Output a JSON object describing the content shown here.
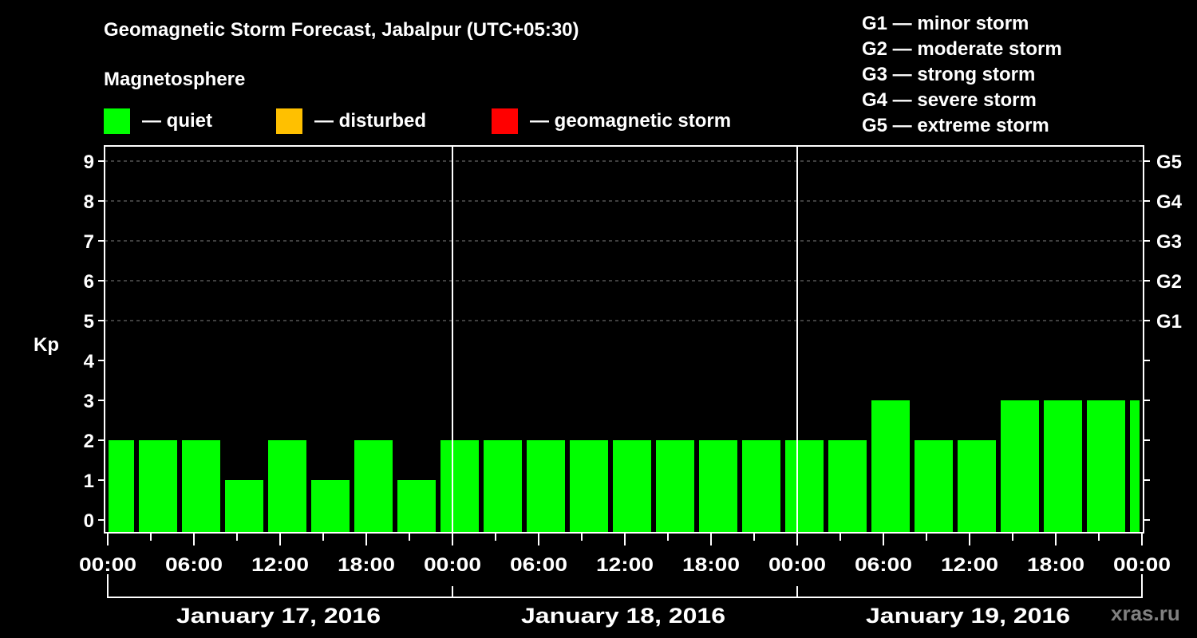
{
  "header": {
    "title": "Geomagnetic Storm Forecast, Jabalpur (UTC+05:30)",
    "subtitle": "Magnetosphere"
  },
  "legend": [
    {
      "label": "— quiet",
      "color": "#00ff00"
    },
    {
      "label": "— disturbed",
      "color": "#ffc000"
    },
    {
      "label": "— geomagnetic storm",
      "color": "#ff0000"
    }
  ],
  "g_scale_legend": [
    "G1 — minor storm",
    "G2 — moderate storm",
    "G3 — strong storm",
    "G4 — severe storm",
    "G5 — extreme storm"
  ],
  "watermark": "xras.ru",
  "chart_data": {
    "type": "bar",
    "title": "Geomagnetic Storm Forecast, Jabalpur (UTC+05:30)",
    "xlabel": "",
    "ylabel": "Kp",
    "ylim": [
      0,
      9
    ],
    "yticks": [
      0,
      1,
      2,
      3,
      4,
      5,
      6,
      7,
      8,
      9
    ],
    "right_axis_labels": {
      "5": "G1",
      "6": "G2",
      "7": "G3",
      "8": "G4",
      "9": "G5"
    },
    "grid": "dashed horizontal at Kp 5-9",
    "x_tick_labels": [
      "00:00",
      "06:00",
      "12:00",
      "18:00",
      "00:00",
      "06:00",
      "12:00",
      "18:00",
      "00:00",
      "06:00",
      "12:00",
      "18:00",
      "00:00"
    ],
    "days": [
      "January 17, 2016",
      "January 18, 2016",
      "January 19, 2016"
    ],
    "interval_hours": 3,
    "categories": [
      "Jan 17 00:00",
      "Jan 17 03:00",
      "Jan 17 06:00",
      "Jan 17 09:00",
      "Jan 17 12:00",
      "Jan 17 15:00",
      "Jan 17 18:00",
      "Jan 17 21:00",
      "Jan 18 00:00",
      "Jan 18 03:00",
      "Jan 18 06:00",
      "Jan 18 09:00",
      "Jan 18 12:00",
      "Jan 18 15:00",
      "Jan 18 18:00",
      "Jan 18 21:00",
      "Jan 19 00:00",
      "Jan 19 03:00",
      "Jan 19 06:00",
      "Jan 19 09:00",
      "Jan 19 12:00",
      "Jan 19 15:00",
      "Jan 19 18:00",
      "Jan 19 21:00"
    ],
    "values": [
      2,
      2,
      2,
      1,
      2,
      1,
      2,
      1,
      2,
      2,
      2,
      2,
      2,
      2,
      2,
      2,
      2,
      2,
      3,
      2,
      2,
      3,
      3,
      3
    ],
    "bar_color": "#00ff00"
  }
}
